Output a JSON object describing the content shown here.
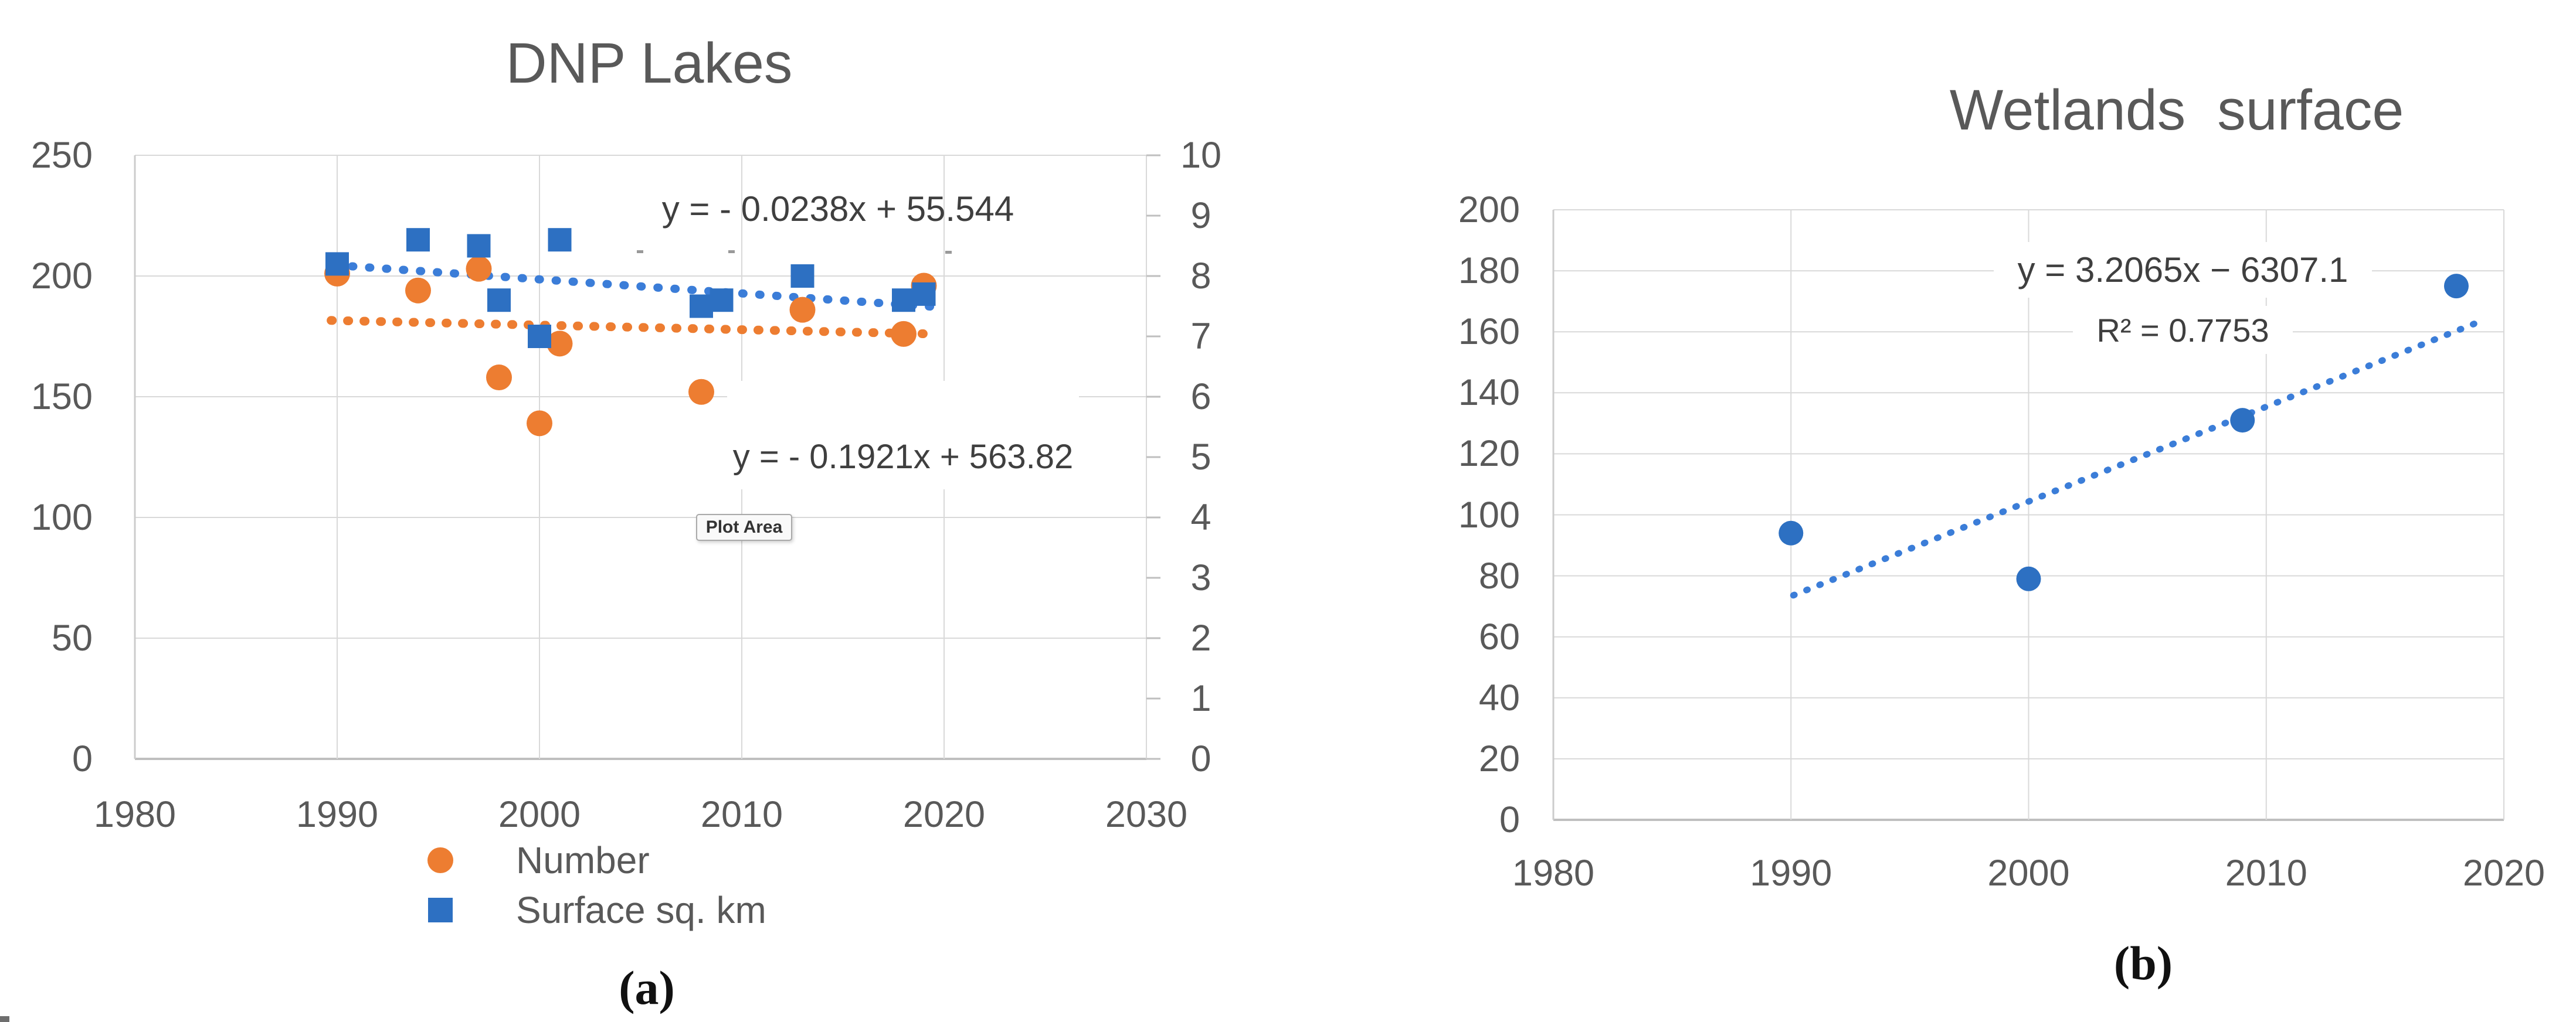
{
  "figure": {
    "caption_a": "(a)",
    "caption_b": "(b)"
  },
  "colors": {
    "orange": "#ED7D31",
    "blue_marker": "#2D70C2",
    "blue_trend": "#3B7DD8",
    "gridline": "#d9d9d9",
    "axis_line": "#bfbfbf",
    "label_gray": "#595959"
  },
  "left_chart": {
    "title": "DNP Lakes",
    "tooltip": "Plot Area",
    "eq_surface": "y = - 0.0238x + 55.544",
    "eq_number": "y = - 0.1921x + 563.82",
    "legend": [
      {
        "label": "Number",
        "shape": "circle",
        "color": "#ED7D31"
      },
      {
        "label": "Surface sq. km",
        "shape": "square",
        "color": "#2D70C2"
      }
    ]
  },
  "right_chart": {
    "title": "Wetlands  surface",
    "eq": "y = 3.2065x − 6307.1",
    "r2": "R² = 0.7753"
  },
  "chart_data": [
    {
      "type": "scatter",
      "title": "DNP Lakes",
      "xlabel": "",
      "ylabel_left": "",
      "ylabel_right": "",
      "xlim": [
        1980,
        2030
      ],
      "ylim_left": [
        0,
        250
      ],
      "ylim_right": [
        0,
        10
      ],
      "x_ticks": [
        1980,
        1990,
        2000,
        2010,
        2020,
        2030
      ],
      "x_gridlines": [
        1990,
        2000,
        2010,
        2020
      ],
      "y_left_ticks": [
        0,
        50,
        100,
        150,
        200,
        250
      ],
      "y_right_ticks": [
        0,
        1,
        2,
        3,
        4,
        5,
        6,
        7,
        8,
        9,
        10
      ],
      "legend_position": "bottom",
      "grid": true,
      "series": [
        {
          "name": "Number",
          "axis": "left",
          "marker": "circle",
          "color": "#ED7D31",
          "points": [
            [
              1990,
              201
            ],
            [
              1994,
              194
            ],
            [
              1997,
              203
            ],
            [
              1998,
              158
            ],
            [
              2000,
              139
            ],
            [
              2001,
              172
            ],
            [
              2008,
              152
            ],
            [
              2013,
              186
            ],
            [
              2018,
              176
            ],
            [
              2019,
              196
            ]
          ],
          "trendline": {
            "equation": "y = - 0.1921x + 563.82",
            "style": "dotted",
            "from": [
              1989.7,
              181.6
            ],
            "to": [
              2019.4,
              176.0
            ]
          }
        },
        {
          "name": "Surface sq. km",
          "axis": "right",
          "marker": "square",
          "color": "#2D70C2",
          "points": [
            [
              1990,
              8.2
            ],
            [
              1994,
              8.6
            ],
            [
              1997,
              8.5
            ],
            [
              1998,
              7.6
            ],
            [
              2000,
              7.0
            ],
            [
              2001,
              8.6
            ],
            [
              2008,
              7.5
            ],
            [
              2009,
              7.6
            ],
            [
              2013,
              8.0
            ],
            [
              2018,
              7.6
            ],
            [
              2019,
              7.7
            ]
          ],
          "trendline": {
            "equation": "y = - 0.0238x + 55.544",
            "style": "dotted",
            "from": [
              1989.9,
              8.18
            ],
            "to": [
              2019.5,
              7.49
            ]
          }
        }
      ]
    },
    {
      "type": "scatter",
      "title": "Wetlands  surface",
      "xlabel": "",
      "ylabel": "",
      "xlim": [
        1980,
        2020
      ],
      "ylim": [
        0,
        200
      ],
      "x_ticks": [
        1980,
        1990,
        2000,
        2010,
        2020
      ],
      "x_gridlines": [
        1990,
        2000,
        2010
      ],
      "y_ticks": [
        0,
        20,
        40,
        60,
        80,
        100,
        120,
        140,
        160,
        180,
        200
      ],
      "grid": true,
      "series": [
        {
          "name": "Wetlands surface",
          "axis": "left",
          "marker": "circle",
          "color": "#2D70C2",
          "points": [
            [
              1990,
              94
            ],
            [
              2000,
              79
            ],
            [
              2009,
              131
            ],
            [
              2018,
              175
            ]
          ],
          "trendline": {
            "equation": "y = 3.2065x − 6307.1",
            "r_squared": "R² = 0.7753",
            "style": "dotted",
            "from": [
              1990.1,
              73.6
            ],
            "to": [
              2019.1,
              163.7
            ]
          }
        }
      ]
    }
  ]
}
